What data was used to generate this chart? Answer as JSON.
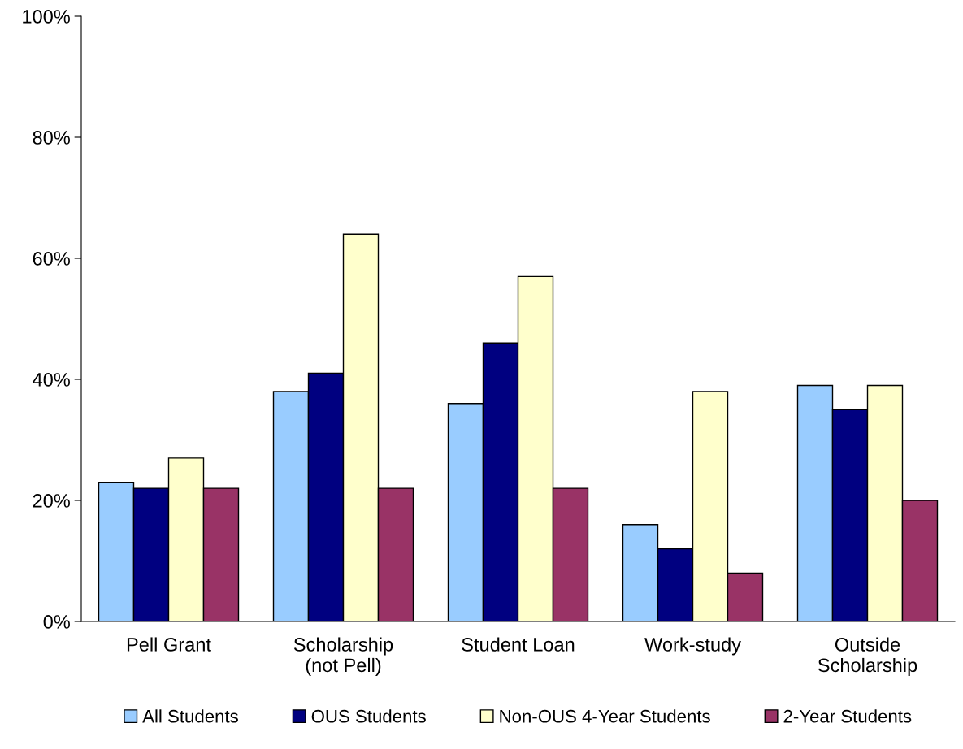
{
  "chart_data": {
    "type": "bar",
    "categories": [
      "Pell Grant",
      "Scholarship\n(not Pell)",
      "Student Loan",
      "Work-study",
      "Outside\nScholarship"
    ],
    "series": [
      {
        "name": "All Students",
        "color": "#99ccff",
        "values": [
          23,
          38,
          36,
          16,
          39
        ]
      },
      {
        "name": "OUS Students",
        "color": "#000080",
        "values": [
          22,
          41,
          46,
          12,
          35
        ]
      },
      {
        "name": "Non-OUS 4-Year Students",
        "color": "#ffffcc",
        "values": [
          27,
          64,
          57,
          38,
          39
        ]
      },
      {
        "name": "2-Year Students",
        "color": "#993366",
        "values": [
          22,
          22,
          22,
          8,
          20
        ]
      }
    ],
    "ylim": [
      0,
      100
    ],
    "yticks": [
      {
        "value": 0,
        "label": "0%"
      },
      {
        "value": 20,
        "label": "20%"
      },
      {
        "value": 40,
        "label": "40%"
      },
      {
        "value": 60,
        "label": "60%"
      },
      {
        "value": 80,
        "label": "80%"
      },
      {
        "value": 100,
        "label": "100%"
      }
    ],
    "grid": false,
    "legend": "bottom"
  }
}
